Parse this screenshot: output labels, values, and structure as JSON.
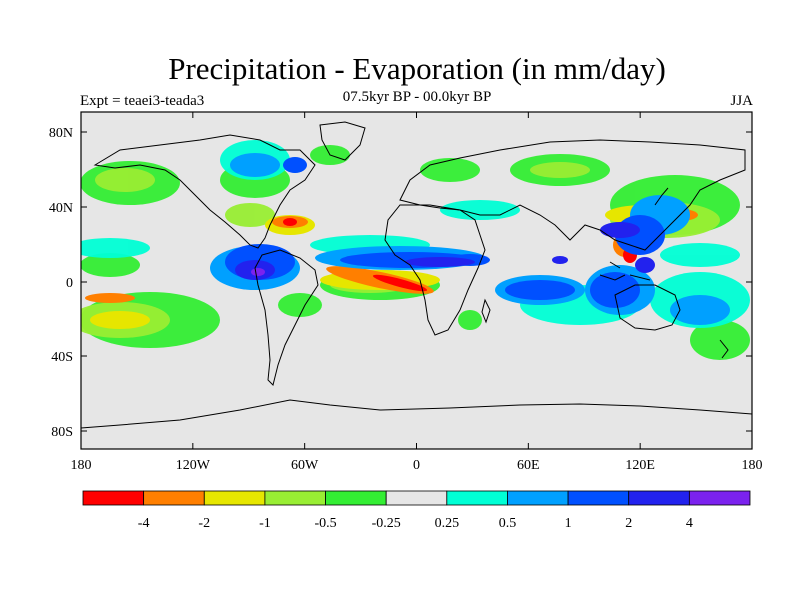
{
  "title": "Precipitation - Evaporation (in mm/day)",
  "subtitle": "07.5kyr BP - 00.0kyr BP",
  "expt_label": "Expt = teaei3-teada3",
  "season_label": "JJA",
  "map": {
    "x_ticks": [
      "180",
      "120W",
      "60W",
      "0",
      "60E",
      "120E",
      "180"
    ],
    "y_ticks": [
      "80N",
      "40N",
      "0",
      "40S",
      "80S"
    ],
    "background_color": "#e6e6e6"
  },
  "colorbar": {
    "colors": [
      "#ff0000",
      "#ff7f00",
      "#e6e600",
      "#99ee33",
      "#33ee33",
      "#e6e6e6",
      "#00ffd5",
      "#00a0ff",
      "#0050ff",
      "#2222ee",
      "#7b22ee"
    ],
    "labels": [
      "-4",
      "-2",
      "-1",
      "-0.5",
      "-0.25",
      "0.25",
      "0.5",
      "1",
      "2",
      "4"
    ]
  }
}
